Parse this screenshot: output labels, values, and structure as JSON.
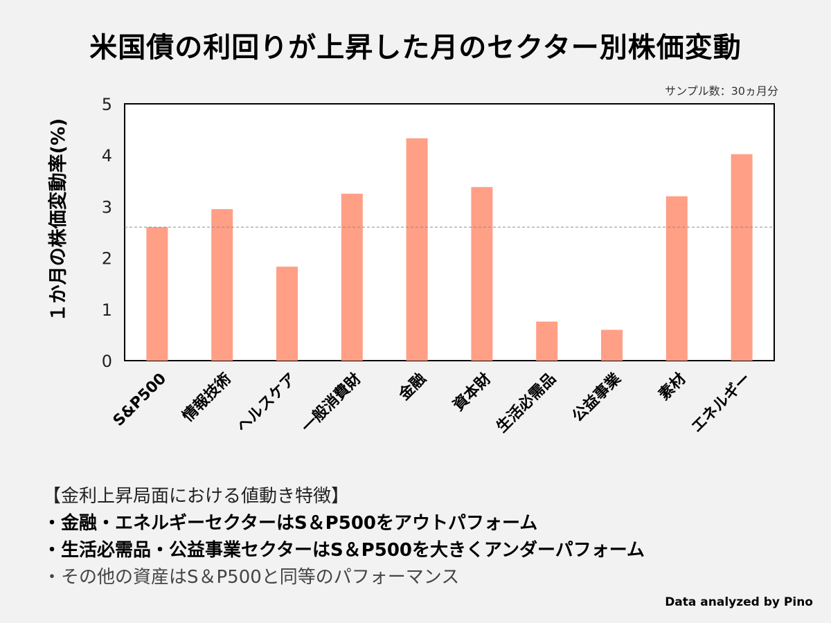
{
  "chart_data": {
    "type": "bar",
    "title": "米国債の利回りが上昇した月のセクター別株価変動",
    "ylabel": "１か月の株価変動率(%)",
    "xlabel": "",
    "categories": [
      "S&P500",
      "情報技術",
      "ヘルスケア",
      "一般消費財",
      "金融",
      "資本財",
      "生活必需品",
      "公益事業",
      "素材",
      "エネルギー"
    ],
    "values": [
      2.6,
      2.95,
      1.83,
      3.25,
      4.33,
      3.38,
      0.76,
      0.6,
      3.2,
      4.02
    ],
    "ylim": [
      0,
      5
    ],
    "yticks": [
      "0",
      "1",
      "2",
      "3",
      "4",
      "5"
    ],
    "reference_line": 2.6,
    "grid": false,
    "bar_color": "#ff9f86",
    "annotation": "サンプル数：30ヵ月分"
  },
  "notes": {
    "heading": "【金利上昇局面における値動き特徴】",
    "bullets": [
      "・金融・エネルギーセクターはS＆P500をアウトパフォーム",
      "・生活必需品・公益事業セクターはS＆P500を大きくアンダーパフォーム",
      "・その他の資産はS＆P500と同等のパフォーマンス"
    ]
  },
  "credit": "Data analyzed by Pino"
}
